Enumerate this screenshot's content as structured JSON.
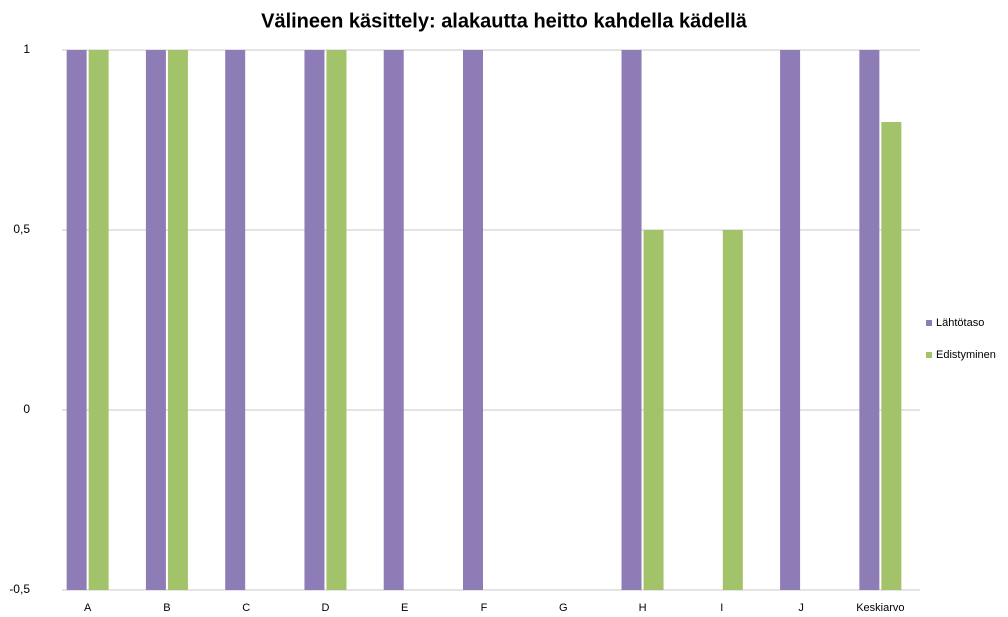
{
  "chart_data": {
    "type": "bar",
    "title": "Välineen käsittely: alakautta heitto kahdella kädellä",
    "categories": [
      "A",
      "B",
      "C",
      "D",
      "E",
      "F",
      "G",
      "H",
      "I",
      "J",
      "Keskiarvo"
    ],
    "series": [
      {
        "name": "Lähtötaso",
        "color": "#8e7cb7",
        "values": [
          1,
          1,
          1,
          1,
          1,
          1,
          null,
          1,
          null,
          1,
          1
        ]
      },
      {
        "name": "Edistyminen",
        "color": "#a3c36a",
        "values": [
          1,
          1,
          null,
          1,
          null,
          null,
          null,
          0.5,
          0.5,
          null,
          0.8
        ]
      }
    ],
    "ylim": [
      -0.5,
      1
    ],
    "yticks": [
      {
        "value": -0.5,
        "label": "-0,5"
      },
      0,
      {
        "value": 0.5,
        "label": "0,5"
      },
      1
    ],
    "grid": true,
    "legend": "right"
  }
}
